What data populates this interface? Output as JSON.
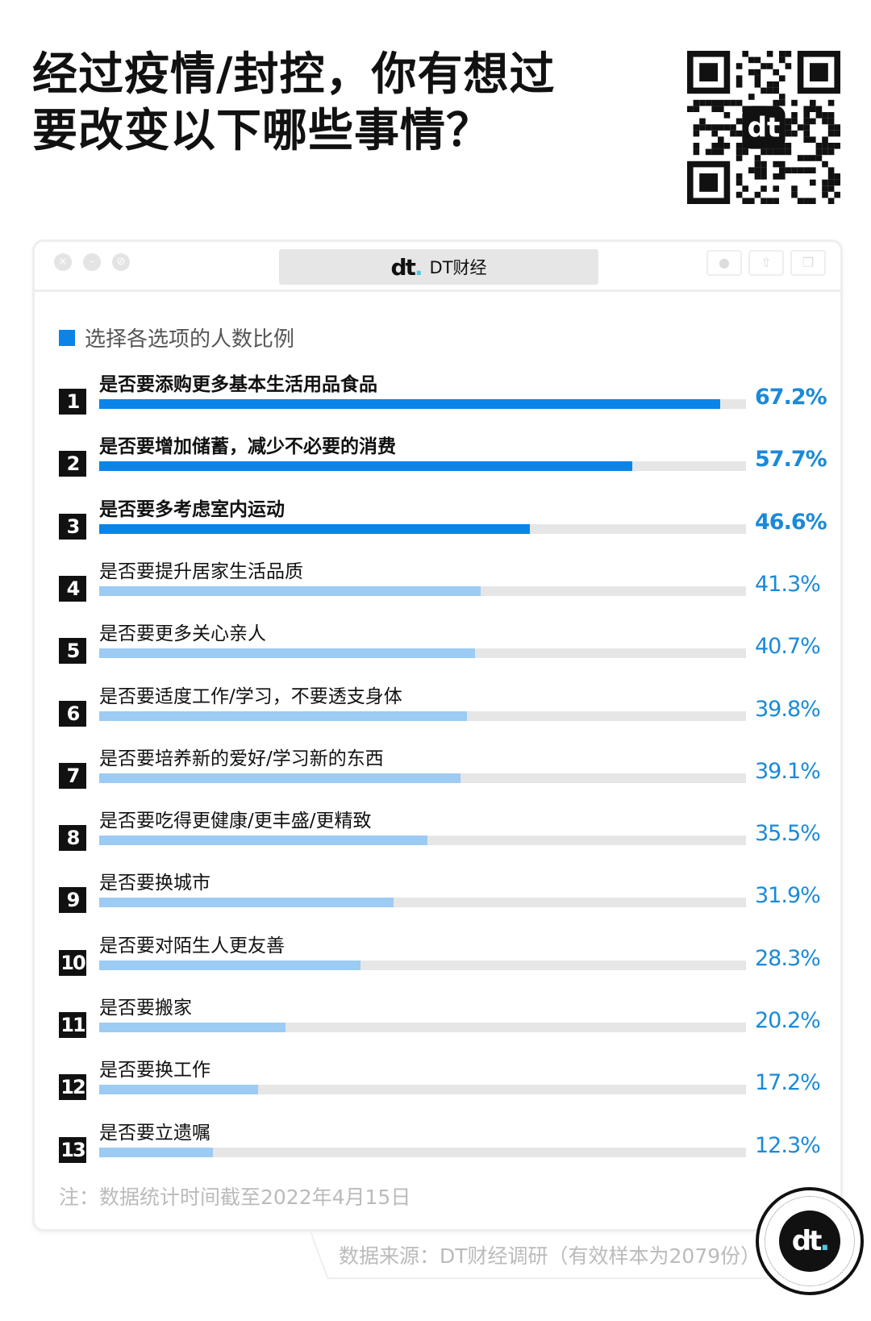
{
  "title": {
    "line1": "经过疫情/封控，你有想过",
    "line2": "要改变以下哪些事情？"
  },
  "window": {
    "tab_logo": "dt",
    "tab_title": "DT财经"
  },
  "colors": {
    "primary": "#0a84e8",
    "secondary": "#9ccbf4",
    "track": "#e6e6e6",
    "percent": "#1a8ad8"
  },
  "chart_data": {
    "type": "bar",
    "orientation": "horizontal",
    "legend": "选择各选项的人数比例",
    "legend_position": "top-left",
    "xlim": [
      0,
      70
    ],
    "categories": [
      "是否要添购更多基本生活用品食品",
      "是否要增加储蓄，减少不必要的消费",
      "是否要多考虑室内运动",
      "是否要提升居家生活品质",
      "是否要更多关心亲人",
      "是否要适度工作/学习，不要透支身体",
      "是否要培养新的爱好/学习新的东西",
      "是否要吃得更健康/更丰盛/更精致",
      "是否要换城市",
      "是否要对陌生人更友善",
      "是否要搬家",
      "是否要换工作",
      "是否要立遗嘱"
    ],
    "ranks": [
      "1",
      "2",
      "3",
      "4",
      "5",
      "6",
      "7",
      "8",
      "9",
      "10",
      "11",
      "12",
      "13"
    ],
    "values": [
      67.2,
      57.7,
      46.6,
      41.3,
      40.7,
      39.8,
      39.1,
      35.5,
      31.9,
      28.3,
      20.2,
      17.2,
      12.3
    ],
    "labels": [
      "67.2%",
      "57.7%",
      "46.6%",
      "41.3%",
      "40.7%",
      "39.8%",
      "39.1%",
      "35.5%",
      "31.9%",
      "28.3%",
      "20.2%",
      "17.2%",
      "12.3%"
    ],
    "highlighted_top": 3
  },
  "note": "注：数据统计时间截至2022年4月15日",
  "source": "数据来源：DT财经调研（有效样本为2079份）",
  "brand_logo": "dt"
}
